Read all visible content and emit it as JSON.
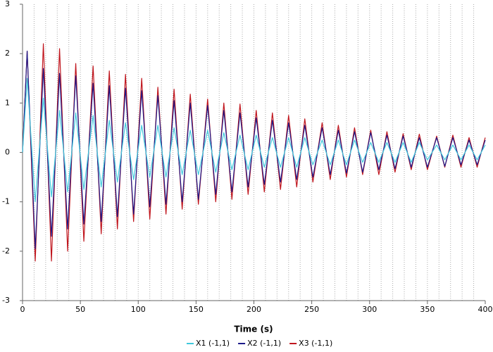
{
  "chart_data": {
    "type": "line",
    "x_label": "Time (s)",
    "x": [
      0,
      4,
      11,
      18,
      25,
      32,
      39,
      46,
      53,
      61,
      68,
      75,
      82,
      89,
      96,
      103,
      110,
      117,
      124,
      131,
      138,
      145,
      152,
      160,
      167,
      174,
      181,
      188,
      195,
      202,
      209,
      216,
      223,
      230,
      237,
      244,
      251,
      259,
      266,
      273,
      280,
      287,
      294,
      301,
      308,
      315,
      322,
      329,
      336,
      343,
      350,
      358,
      365,
      372,
      379,
      386,
      393,
      400
    ],
    "series": [
      {
        "name": "X1 (-1,1)",
        "color": "#3fc8dc",
        "values": [
          0,
          1.5,
          -1.0,
          1.1,
          -0.9,
          0.85,
          -0.8,
          0.8,
          -0.75,
          0.75,
          -0.7,
          0.65,
          -0.6,
          0.6,
          -0.55,
          0.55,
          -0.5,
          0.55,
          -0.5,
          0.5,
          -0.45,
          0.45,
          -0.45,
          0.45,
          -0.4,
          0.4,
          -0.35,
          0.35,
          -0.35,
          0.35,
          -0.3,
          0.3,
          -0.3,
          0.3,
          -0.3,
          0.3,
          -0.25,
          0.25,
          -0.25,
          0.25,
          -0.25,
          0.25,
          -0.2,
          0.2,
          -0.2,
          0.2,
          -0.2,
          0.2,
          -0.2,
          0.2,
          -0.15,
          0.15,
          -0.15,
          0.15,
          -0.15,
          0.15,
          -0.15,
          0.15
        ]
      },
      {
        "name": "X2 (-1,1)",
        "color": "#1c1a8a",
        "values": [
          0,
          2.05,
          -1.95,
          1.7,
          -1.7,
          1.6,
          -1.55,
          1.55,
          -1.45,
          1.4,
          -1.4,
          1.35,
          -1.3,
          1.3,
          -1.25,
          1.25,
          -1.1,
          1.15,
          -1.05,
          1.05,
          -1.0,
          1.0,
          -0.95,
          0.95,
          -0.85,
          0.85,
          -0.8,
          0.8,
          -0.7,
          0.7,
          -0.65,
          0.65,
          -0.6,
          0.6,
          -0.55,
          0.55,
          -0.5,
          0.5,
          -0.45,
          0.45,
          -0.42,
          0.42,
          -0.4,
          0.4,
          -0.35,
          0.35,
          -0.33,
          0.33,
          -0.3,
          0.3,
          -0.3,
          0.3,
          -0.28,
          0.3,
          -0.25,
          0.25,
          -0.25,
          0.25
        ]
      },
      {
        "name": "X3 (-1,1)",
        "color": "#c0161e",
        "values": [
          0,
          2.05,
          -2.2,
          2.2,
          -2.2,
          2.1,
          -2.0,
          1.8,
          -1.8,
          1.75,
          -1.65,
          1.65,
          -1.55,
          1.58,
          -1.4,
          1.5,
          -1.35,
          1.32,
          -1.25,
          1.28,
          -1.15,
          1.18,
          -1.05,
          1.08,
          -1.0,
          1.0,
          -0.95,
          0.98,
          -0.85,
          0.85,
          -0.8,
          0.8,
          -0.75,
          0.75,
          -0.7,
          0.68,
          -0.6,
          0.6,
          -0.55,
          0.55,
          -0.5,
          0.5,
          -0.45,
          0.45,
          -0.45,
          0.42,
          -0.4,
          0.38,
          -0.35,
          0.37,
          -0.35,
          0.33,
          -0.3,
          0.35,
          -0.3,
          0.3,
          -0.3,
          0.3
        ]
      }
    ],
    "xlim": [
      0,
      400
    ],
    "xticks": [
      0,
      50,
      100,
      150,
      200,
      250,
      300,
      350,
      400
    ],
    "ylim": [
      -3,
      3
    ],
    "yticks": [
      -3,
      -2,
      -1,
      0,
      1,
      2,
      3
    ],
    "minor_grid_step": 10,
    "legend": "bottom"
  }
}
